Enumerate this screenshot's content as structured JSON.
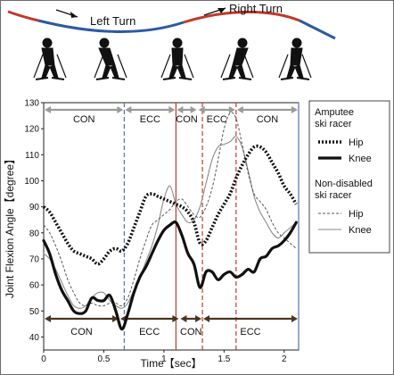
{
  "banner": {
    "left_turn_label": "Left Turn",
    "right_turn_label": "Right Turn",
    "left_color": "#c0392b",
    "mid_color": "#2c5aa0",
    "right_color": "#c0392b"
  },
  "chart_data": {
    "type": "line",
    "title": "",
    "xlabel": "Time【sec】",
    "ylabel": "Joint Flexion Angle【degree】",
    "xlim": [
      0,
      2.12
    ],
    "ylim": [
      35,
      130
    ],
    "x_ticks": [
      "0",
      "0.5",
      "1",
      "1.5",
      "2"
    ],
    "x_tick_values": [
      0,
      0.5,
      1,
      1.5,
      2
    ],
    "y_ticks": [
      "40",
      "50",
      "60",
      "70",
      "80",
      "90",
      "100",
      "110",
      "120",
      "130"
    ],
    "y_tick_values": [
      40,
      50,
      60,
      70,
      80,
      90,
      100,
      110,
      120,
      130
    ],
    "legend": {
      "placement": "right",
      "group1_title": "Amputee ski racer",
      "group2_title": "Non-disabled ski racer",
      "entries": [
        {
          "group": 1,
          "label": "Hip",
          "style": "dotted-thick"
        },
        {
          "group": 1,
          "label": "Knee",
          "style": "solid-thick"
        },
        {
          "group": 2,
          "label": "Hip",
          "style": "dashed-thin"
        },
        {
          "group": 2,
          "label": "Knee",
          "style": "solid-thin"
        }
      ]
    },
    "top_phases": [
      {
        "label": "CON",
        "start": 0,
        "end": 0.67
      },
      {
        "label": "ECC",
        "start": 0.67,
        "end": 1.1
      },
      {
        "label": "CON",
        "start": 1.1,
        "end": 1.28
      },
      {
        "label": "ECC",
        "start": 1.28,
        "end": 1.6
      },
      {
        "label": "CON",
        "start": 1.6,
        "end": 2.12
      }
    ],
    "bottom_phases": [
      {
        "label": "CON",
        "start": 0,
        "end": 0.63
      },
      {
        "label": "ECC",
        "start": 0.63,
        "end": 1.13
      },
      {
        "label": "CON",
        "start": 1.13,
        "end": 1.32
      },
      {
        "label": "ECC",
        "start": 1.32,
        "end": 2.12
      }
    ],
    "phase_lines": [
      {
        "x": 0.67,
        "color": "#5b6fb0",
        "style": "dashed"
      },
      {
        "x": 1.1,
        "color": "#c0392b",
        "style": "solid"
      },
      {
        "x": 1.32,
        "color": "#c0392b",
        "style": "dashed"
      },
      {
        "x": 1.6,
        "color": "#c0392b",
        "style": "dashed"
      },
      {
        "x": 2.12,
        "color": "#5b6fb0",
        "style": "solid"
      }
    ],
    "series": [
      {
        "name": "Amputee ski racer Hip",
        "style": "dotted-thick",
        "color": "#111111",
        "x": [
          0,
          0.05,
          0.1,
          0.15,
          0.2,
          0.25,
          0.3,
          0.35,
          0.4,
          0.45,
          0.5,
          0.55,
          0.6,
          0.65,
          0.7,
          0.75,
          0.8,
          0.85,
          0.9,
          0.95,
          1.0,
          1.05,
          1.1,
          1.15,
          1.2,
          1.25,
          1.3,
          1.35,
          1.4,
          1.45,
          1.5,
          1.55,
          1.6,
          1.65,
          1.7,
          1.75,
          1.8,
          1.85,
          1.9,
          1.95,
          2.0,
          2.05,
          2.1
        ],
        "values": [
          90,
          88,
          84,
          80,
          76,
          73,
          72,
          71,
          70,
          68,
          70,
          73,
          74,
          73,
          76,
          82,
          88,
          94,
          95,
          94,
          93,
          92,
          91,
          90,
          88,
          84,
          76,
          77,
          82,
          87,
          91,
          95,
          101,
          106,
          110,
          113,
          113,
          111,
          107,
          103,
          98,
          95,
          91
        ]
      },
      {
        "name": "Amputee ski racer Knee",
        "style": "solid-thick",
        "color": "#111111",
        "x": [
          0,
          0.05,
          0.1,
          0.15,
          0.2,
          0.25,
          0.3,
          0.35,
          0.4,
          0.45,
          0.5,
          0.55,
          0.6,
          0.65,
          0.7,
          0.75,
          0.8,
          0.85,
          0.9,
          0.95,
          1.0,
          1.05,
          1.1,
          1.15,
          1.2,
          1.25,
          1.3,
          1.35,
          1.4,
          1.45,
          1.5,
          1.55,
          1.6,
          1.65,
          1.7,
          1.75,
          1.8,
          1.85,
          1.9,
          1.95,
          2.0,
          2.05,
          2.1
        ],
        "values": [
          77,
          72,
          64,
          58,
          54,
          50,
          49,
          50,
          55,
          54,
          54,
          56,
          50,
          43,
          49,
          57,
          63,
          67,
          72,
          77,
          81,
          83,
          84,
          79,
          72,
          68,
          59,
          65,
          65,
          62,
          64,
          65,
          63,
          64,
          66,
          65,
          70,
          71,
          74,
          75,
          77,
          80,
          84
        ]
      },
      {
        "name": "Non-disabled ski racer Hip",
        "style": "dashed-thin",
        "color": "#555555",
        "x": [
          0,
          0.05,
          0.1,
          0.15,
          0.2,
          0.25,
          0.3,
          0.35,
          0.4,
          0.45,
          0.5,
          0.55,
          0.6,
          0.65,
          0.7,
          0.75,
          0.8,
          0.85,
          0.9,
          0.95,
          1.0,
          1.05,
          1.1,
          1.15,
          1.2,
          1.25,
          1.3,
          1.35,
          1.4,
          1.45,
          1.5,
          1.55,
          1.6,
          1.65,
          1.7,
          1.75,
          1.8,
          1.85,
          1.9,
          1.95,
          2.0,
          2.05,
          2.1
        ],
        "values": [
          83,
          80,
          75,
          69,
          62,
          57,
          53,
          52,
          53,
          52,
          52,
          53,
          53,
          52,
          55,
          62,
          70,
          77,
          83,
          85,
          87,
          89,
          92,
          93,
          90,
          87,
          86,
          90,
          97,
          108,
          120,
          126,
          124,
          114,
          103,
          95,
          92,
          89,
          84,
          80,
          78,
          76,
          74
        ]
      },
      {
        "name": "Non-disabled ski racer Knee",
        "style": "solid-thin",
        "color": "#888888",
        "x": [
          0,
          0.05,
          0.1,
          0.15,
          0.2,
          0.25,
          0.3,
          0.35,
          0.4,
          0.45,
          0.5,
          0.55,
          0.6,
          0.65,
          0.7,
          0.75,
          0.8,
          0.85,
          0.9,
          0.95,
          1.0,
          1.05,
          1.1,
          1.15,
          1.2,
          1.25,
          1.3,
          1.35,
          1.4,
          1.45,
          1.5,
          1.55,
          1.6,
          1.65,
          1.7,
          1.75,
          1.8,
          1.85,
          1.9,
          1.95,
          2.0,
          2.05,
          2.1
        ],
        "values": [
          72,
          70,
          66,
          61,
          56,
          52,
          51,
          52,
          55,
          57,
          57,
          54,
          52,
          51,
          53,
          58,
          63,
          69,
          75,
          83,
          93,
          98,
          91,
          87,
          84,
          85,
          90,
          99,
          108,
          113,
          114,
          115,
          117,
          113,
          104,
          94,
          88,
          84,
          80,
          78,
          80,
          82,
          84
        ]
      }
    ]
  }
}
